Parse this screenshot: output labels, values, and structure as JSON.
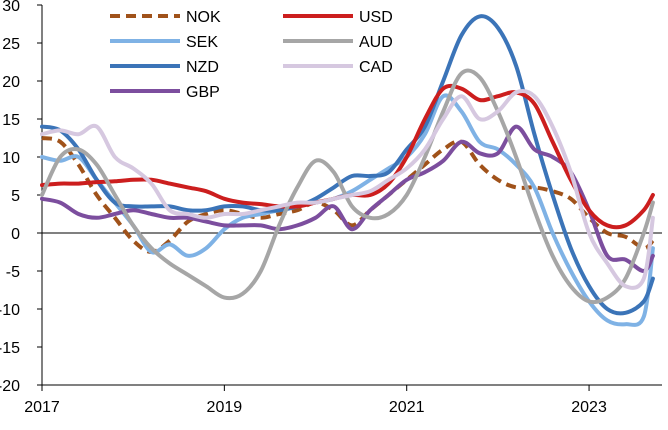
{
  "chart_data": {
    "type": "line",
    "title": "",
    "xlabel": "",
    "ylabel": "",
    "ylim": [
      -20,
      30
    ],
    "y_ticks": [
      "30",
      "25",
      "20",
      "15",
      "10",
      "5",
      "0",
      "-5",
      "-10",
      "-15",
      "-20"
    ],
    "x_ticks": [
      "2017",
      "2019",
      "2021",
      "2023"
    ],
    "xlim": [
      2017.0,
      2023.8
    ],
    "zero_line": true,
    "grid": false,
    "legend_placement": "top-left",
    "series": [
      {
        "name": "NOK",
        "color": "#A0521A",
        "dash": true,
        "x": [
          2017.0,
          2017.2,
          2017.4,
          2017.6,
          2017.8,
          2018.0,
          2018.2,
          2018.4,
          2018.6,
          2018.8,
          2019.0,
          2019.2,
          2019.4,
          2019.6,
          2019.8,
          2020.0,
          2020.2,
          2020.4,
          2020.6,
          2020.8,
          2021.0,
          2021.2,
          2021.4,
          2021.6,
          2021.8,
          2022.0,
          2022.2,
          2022.4,
          2022.6,
          2022.8,
          2023.0,
          2023.2,
          2023.4,
          2023.6,
          2023.7
        ],
        "y": [
          12.5,
          12,
          9,
          5,
          2,
          -1,
          -2.5,
          -1,
          1.5,
          2.5,
          3,
          2.5,
          2,
          2.5,
          3,
          4,
          3,
          1,
          3,
          5,
          7,
          9,
          11,
          12,
          9,
          7,
          6,
          6,
          5.5,
          4.5,
          2,
          0,
          -0.5,
          -2,
          -1
        ]
      },
      {
        "name": "SEK",
        "color": "#7FB2E5",
        "dash": false,
        "x": [
          2017.0,
          2017.2,
          2017.4,
          2017.6,
          2017.8,
          2018.0,
          2018.2,
          2018.4,
          2018.6,
          2018.8,
          2019.0,
          2019.2,
          2019.4,
          2019.6,
          2019.8,
          2020.0,
          2020.2,
          2020.4,
          2020.6,
          2020.8,
          2021.0,
          2021.2,
          2021.4,
          2021.6,
          2021.8,
          2022.0,
          2022.2,
          2022.4,
          2022.6,
          2022.8,
          2023.0,
          2023.2,
          2023.4,
          2023.6,
          2023.7
        ],
        "y": [
          10,
          9.5,
          10,
          7,
          4,
          1,
          -2.5,
          -1.5,
          -3,
          -2,
          0.5,
          2,
          2.5,
          3,
          3.5,
          4,
          4.5,
          5.5,
          7,
          8.5,
          10,
          13,
          18,
          16,
          12,
          11,
          9,
          6,
          0,
          -5,
          -9,
          -11.5,
          -12,
          -11,
          -2
        ]
      },
      {
        "name": "NZD",
        "color": "#3B74B8",
        "dash": false,
        "x": [
          2017.0,
          2017.2,
          2017.4,
          2017.6,
          2017.8,
          2018.0,
          2018.2,
          2018.4,
          2018.6,
          2018.8,
          2019.0,
          2019.2,
          2019.4,
          2019.6,
          2019.8,
          2020.0,
          2020.2,
          2020.4,
          2020.6,
          2020.8,
          2021.0,
          2021.2,
          2021.4,
          2021.6,
          2021.8,
          2022.0,
          2022.2,
          2022.4,
          2022.6,
          2022.8,
          2023.0,
          2023.2,
          2023.4,
          2023.6,
          2023.7
        ],
        "y": [
          14,
          13.5,
          11,
          7,
          4,
          3.5,
          3.5,
          3.5,
          3,
          3,
          3.5,
          3.5,
          3,
          3,
          3.5,
          4.5,
          6,
          7.5,
          7.5,
          8,
          11,
          14,
          20,
          26,
          28.5,
          27,
          22,
          13,
          5,
          -2,
          -7,
          -10,
          -10.5,
          -9,
          -6
        ]
      },
      {
        "name": "GBP",
        "color": "#7C4E9E",
        "dash": false,
        "x": [
          2017.0,
          2017.2,
          2017.4,
          2017.6,
          2017.8,
          2018.0,
          2018.2,
          2018.4,
          2018.6,
          2018.8,
          2019.0,
          2019.2,
          2019.4,
          2019.6,
          2019.8,
          2020.0,
          2020.2,
          2020.4,
          2020.6,
          2020.8,
          2021.0,
          2021.2,
          2021.4,
          2021.6,
          2021.8,
          2022.0,
          2022.2,
          2022.4,
          2022.6,
          2022.8,
          2023.0,
          2023.2,
          2023.4,
          2023.6,
          2023.7
        ],
        "y": [
          4.5,
          4,
          2.5,
          2,
          2.5,
          3,
          2.5,
          2,
          2,
          1.5,
          1,
          1,
          1,
          0.5,
          1,
          2,
          3.5,
          0.5,
          3,
          5,
          7,
          8,
          9.5,
          12,
          10.5,
          10.5,
          14,
          11,
          10,
          8,
          3,
          -3,
          -3.5,
          -5,
          -3
        ]
      },
      {
        "name": "USD",
        "color": "#CC1E1E",
        "dash": false,
        "x": [
          2017.0,
          2017.2,
          2017.4,
          2017.6,
          2017.8,
          2018.0,
          2018.2,
          2018.4,
          2018.6,
          2018.8,
          2019.0,
          2019.2,
          2019.4,
          2019.6,
          2019.8,
          2020.0,
          2020.2,
          2020.4,
          2020.6,
          2020.8,
          2021.0,
          2021.2,
          2021.4,
          2021.6,
          2021.8,
          2022.0,
          2022.2,
          2022.4,
          2022.6,
          2022.8,
          2023.0,
          2023.2,
          2023.4,
          2023.6,
          2023.7
        ],
        "y": [
          6.3,
          6.5,
          6.5,
          6.7,
          6.8,
          7,
          7,
          6.5,
          6,
          5.5,
          4.5,
          4,
          3.8,
          3.5,
          3.5,
          4,
          4.5,
          5,
          5,
          6.5,
          10,
          15,
          19,
          19,
          17.5,
          18,
          18.5,
          17,
          12,
          7,
          3,
          1,
          1,
          3,
          5
        ]
      },
      {
        "name": "AUD",
        "color": "#A6A6A6",
        "dash": false,
        "x": [
          2017.0,
          2017.2,
          2017.4,
          2017.6,
          2017.8,
          2018.0,
          2018.2,
          2018.4,
          2018.6,
          2018.8,
          2019.0,
          2019.2,
          2019.4,
          2019.6,
          2019.8,
          2020.0,
          2020.2,
          2020.4,
          2020.6,
          2020.8,
          2021.0,
          2021.2,
          2021.4,
          2021.6,
          2021.8,
          2022.0,
          2022.2,
          2022.4,
          2022.6,
          2022.8,
          2023.0,
          2023.2,
          2023.4,
          2023.6,
          2023.7
        ],
        "y": [
          5,
          10,
          11,
          9,
          5,
          1,
          -2,
          -4,
          -5.5,
          -7,
          -8.5,
          -8,
          -5,
          1,
          6,
          9.5,
          8,
          3.5,
          2,
          2.5,
          5,
          10,
          16,
          21,
          20.5,
          16,
          10,
          3,
          -3,
          -7,
          -9,
          -8.5,
          -6,
          0,
          4
        ]
      },
      {
        "name": "CAD",
        "color": "#D6C8E0",
        "dash": false,
        "x": [
          2017.0,
          2017.2,
          2017.4,
          2017.6,
          2017.8,
          2018.0,
          2018.2,
          2018.4,
          2018.6,
          2018.8,
          2019.0,
          2019.2,
          2019.4,
          2019.6,
          2019.8,
          2020.0,
          2020.2,
          2020.4,
          2020.6,
          2020.8,
          2021.0,
          2021.2,
          2021.4,
          2021.6,
          2021.8,
          2022.0,
          2022.2,
          2022.4,
          2022.6,
          2022.8,
          2023.0,
          2023.2,
          2023.4,
          2023.6,
          2023.7
        ],
        "y": [
          13,
          13.5,
          13,
          14,
          10,
          8.5,
          6.5,
          3,
          2.5,
          2,
          2.5,
          2.5,
          3,
          3.5,
          4,
          4,
          4.5,
          5,
          5.5,
          7,
          8.5,
          11,
          15,
          18,
          15,
          16,
          18.5,
          18,
          14,
          8,
          0,
          -4,
          -7,
          -6,
          2
        ]
      }
    ]
  }
}
